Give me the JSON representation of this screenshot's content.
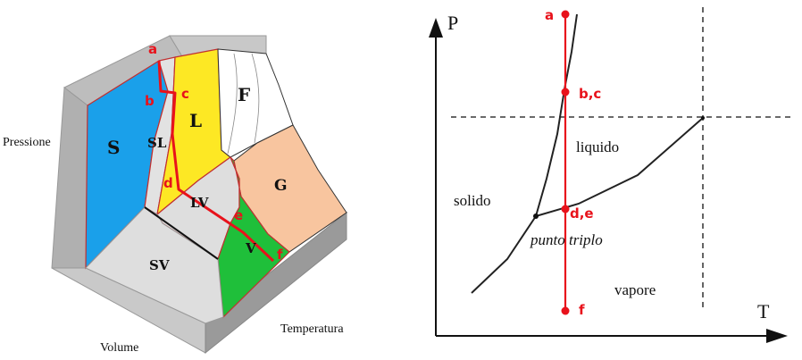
{
  "colors": {
    "solid": "#1aa0ea",
    "liquid": "#fde824",
    "fluid": "#ffffff",
    "gas": "#f8c59f",
    "vapor": "#1fbf3a",
    "mixed": "#dedede",
    "path": "#e8121b",
    "base_light": "#d4d4d4",
    "base_dark": "#9a9a9a"
  },
  "diagram3d": {
    "axis_pressure": "Pressione",
    "axis_volume": "Volume",
    "axis_temperature": "Temperatura",
    "regions": {
      "S": "S",
      "SL": "SL",
      "L": "L",
      "F": "F",
      "G": "G",
      "LV": "LV",
      "V": "V",
      "SV": "SV"
    },
    "points": {
      "a": "a",
      "b": "b",
      "c": "c",
      "d": "d",
      "e": "e",
      "f": "f"
    }
  },
  "diagram2d": {
    "axis_p": "P",
    "axis_t": "T",
    "region_solid": "solido",
    "region_liquid": "liquido",
    "region_vapor": "vapore",
    "triple_point": "punto triplo",
    "points": {
      "a": "a",
      "bc": "b,c",
      "de": "d,e",
      "f": "f"
    }
  }
}
